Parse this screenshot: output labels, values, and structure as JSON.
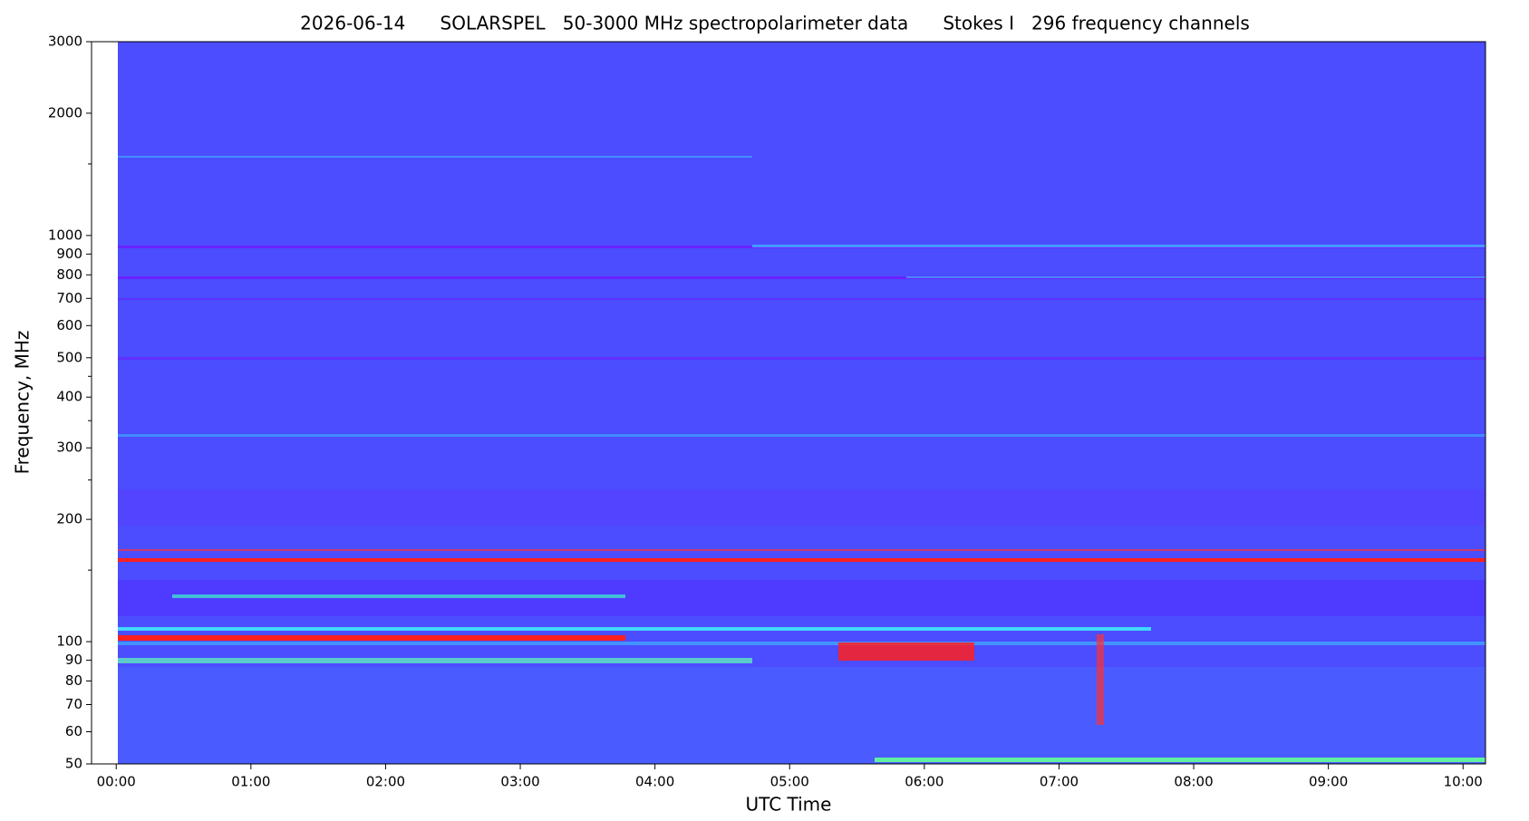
{
  "chart_data": {
    "type": "spectrogram",
    "title": "2026-06-14      SOLARSPEL   50-3000 MHz spectropolarimeter data      Stokes I   296 frequency channels",
    "xlabel": "UTC Time",
    "ylabel": "Frequency, MHz",
    "log_y": true,
    "color": "#4b4dff",
    "xlim": [
      -11,
      610
    ],
    "xticks": [
      {
        "value": 0,
        "label": "00:00"
      },
      {
        "value": 60,
        "label": "01:00"
      },
      {
        "value": 120,
        "label": "02:00"
      },
      {
        "value": 180,
        "label": "03:00"
      },
      {
        "value": 240,
        "label": "04:00"
      },
      {
        "value": 300,
        "label": "05:00"
      },
      {
        "value": 360,
        "label": "06:00"
      },
      {
        "value": 420,
        "label": "07:00"
      },
      {
        "value": 480,
        "label": "08:00"
      },
      {
        "value": 540,
        "label": "09:00"
      },
      {
        "value": 600,
        "label": "10:00"
      }
    ],
    "ylim": [
      50,
      3000
    ],
    "yticks": [
      50,
      60,
      70,
      80,
      90,
      100,
      200,
      300,
      400,
      500,
      600,
      700,
      800,
      900,
      1000,
      2000,
      3000
    ],
    "yminorticks": [
      150,
      250,
      350,
      450,
      1500
    ]
  }
}
